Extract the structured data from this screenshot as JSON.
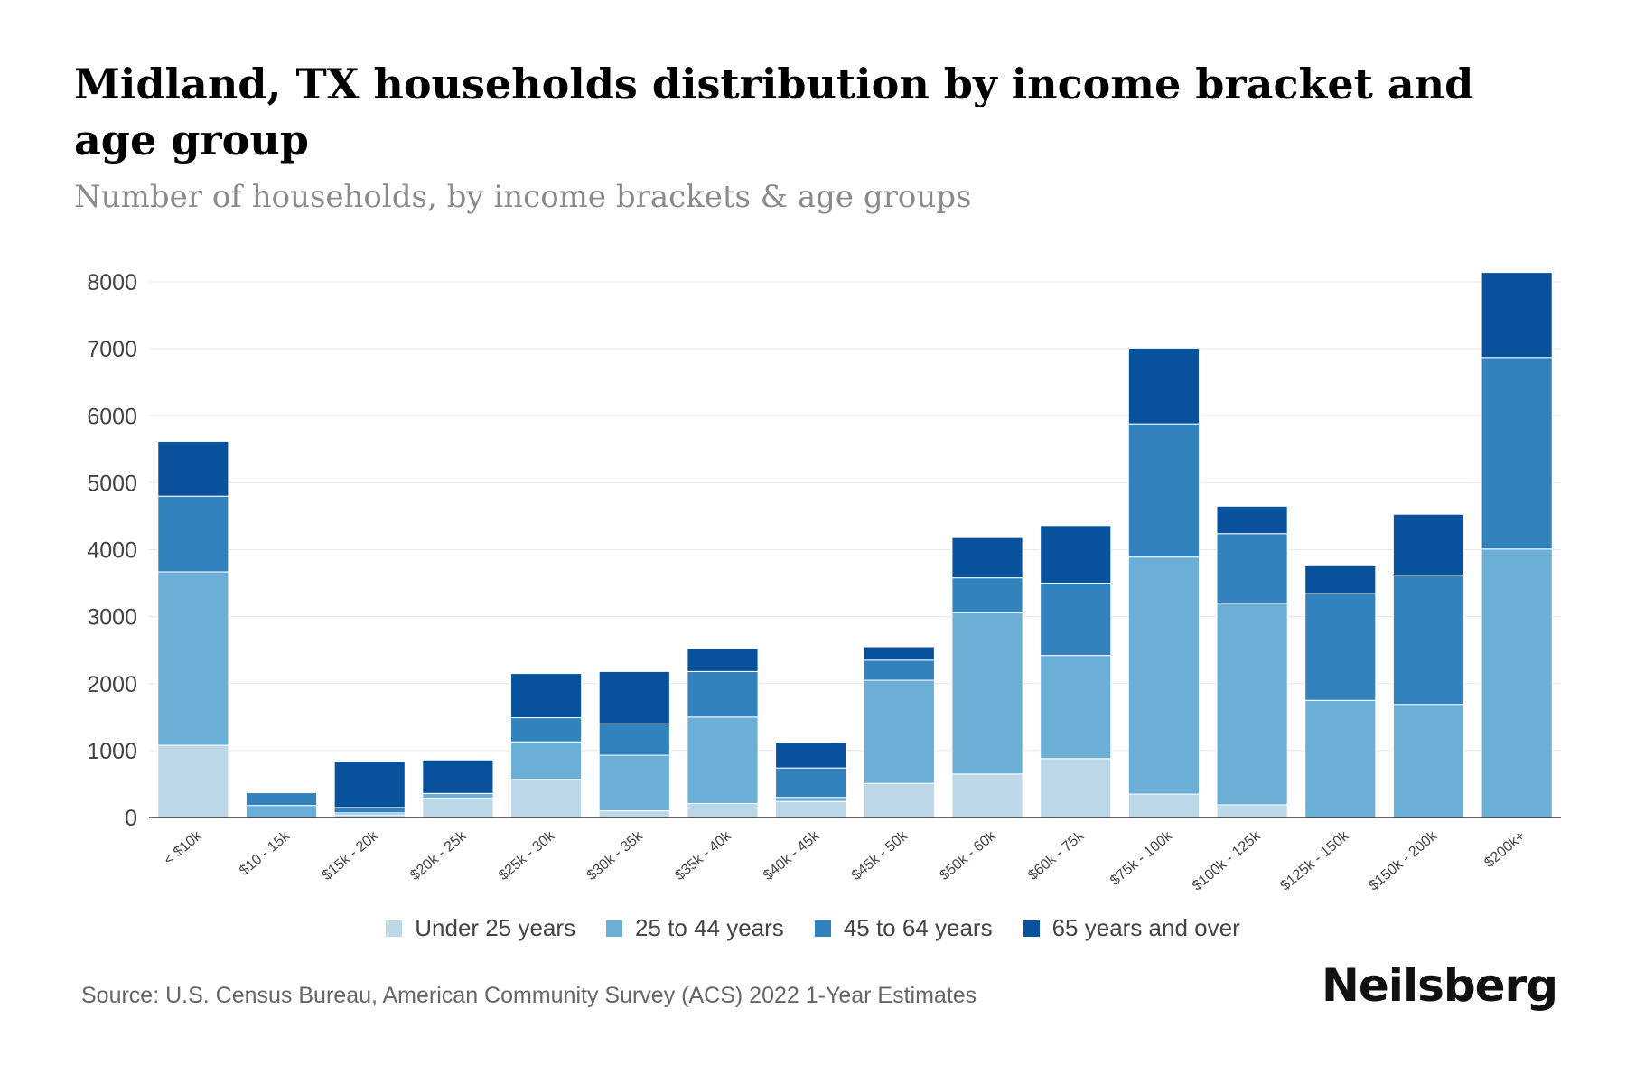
{
  "header": {
    "title": "Midland, TX households distribution by income bracket and age group",
    "subtitle": "Number of households, by income brackets & age groups"
  },
  "footer": {
    "source": "Source: U.S. Census Bureau, American Community Survey (ACS) 2022 1-Year Estimates",
    "brand": "Neilsberg"
  },
  "colors": {
    "under25": "#bcd8e8",
    "age25to44": "#6baed6",
    "age45to64": "#3182bd",
    "age65plus": "#08519c",
    "grid": "#e8e8e8",
    "axis": "#333333"
  },
  "chart_data": {
    "type": "bar",
    "stacked": true,
    "title": "Midland, TX households distribution by income bracket and age group",
    "subtitle": "Number of households, by income brackets & age groups",
    "xlabel": "",
    "ylabel": "",
    "ylim": [
      0,
      8000
    ],
    "yticks": [
      0,
      1000,
      2000,
      3000,
      4000,
      5000,
      6000,
      7000,
      8000
    ],
    "grid": true,
    "legend_position": "bottom",
    "categories": [
      "< $10k",
      "$10 - 15k",
      "$15k - 20k",
      "$20k - 25k",
      "$25k - 30k",
      "$30k - 35k",
      "$35k - 40k",
      "$40k - 45k",
      "$45k - 50k",
      "$50k - 60k",
      "$60k - 75k",
      "$75k - 100k",
      "$100k - 125k",
      "$125k - 150k",
      "$150k - 200k",
      "$200k+"
    ],
    "series": [
      {
        "name": "Under 25 years",
        "color": "#bcd8e8",
        "values": [
          1080,
          0,
          40,
          290,
          570,
          100,
          210,
          240,
          510,
          650,
          880,
          350,
          190,
          0,
          0,
          0
        ]
      },
      {
        "name": "25 to 44 years",
        "color": "#6baed6",
        "values": [
          2590,
          180,
          30,
          70,
          560,
          830,
          1290,
          60,
          1540,
          2410,
          1540,
          3540,
          3010,
          1750,
          1690,
          4010
        ]
      },
      {
        "name": "45 to 64 years",
        "color": "#3182bd",
        "values": [
          1130,
          190,
          80,
          0,
          360,
          470,
          680,
          440,
          300,
          520,
          1080,
          1990,
          1040,
          1600,
          1930,
          2860
        ]
      },
      {
        "name": "65 years and over",
        "color": "#08519c",
        "values": [
          820,
          0,
          690,
          500,
          660,
          780,
          340,
          380,
          200,
          600,
          860,
          1130,
          410,
          410,
          910,
          1270
        ]
      }
    ]
  }
}
